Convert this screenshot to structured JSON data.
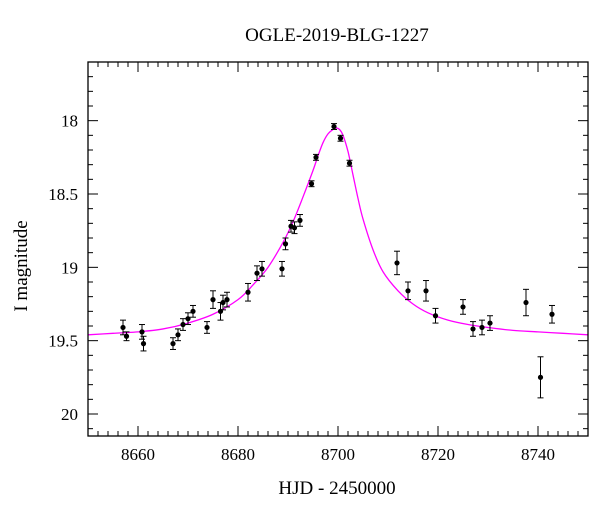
{
  "chart_data": {
    "type": "scatter",
    "title": "OGLE-2019-BLG-1227",
    "xlabel": "HJD - 2450000",
    "ylabel": "I magnitude",
    "xlim": [
      8650,
      8750
    ],
    "ylim": [
      17.6,
      20.15
    ],
    "y_inverted": true,
    "x_ticks": [
      8660,
      8680,
      8700,
      8720,
      8740
    ],
    "y_ticks": [
      18,
      18.5,
      19,
      19.5,
      20
    ],
    "y_tick_labels": [
      "18",
      "18.5",
      "19",
      "19.5",
      "20"
    ],
    "x_minor_step": 2,
    "y_minor_step": 0.1,
    "grid": false,
    "legend": "none",
    "colors": {
      "points": "#000000",
      "model": "#ff00ff",
      "axes": "#000000"
    },
    "series": [
      {
        "kind": "data",
        "x": [
          8657.0,
          8657.7,
          8660.8,
          8661.1,
          8667.0,
          8668.0,
          8669.0,
          8670.0,
          8671.0,
          8673.8,
          8675.0,
          8676.5,
          8677.0,
          8677.8,
          8682.0,
          8683.8,
          8684.8,
          8688.8,
          8689.5,
          8690.6,
          8691.3,
          8692.4,
          8694.7,
          8695.6,
          8699.2,
          8700.5,
          8702.3,
          8711.8,
          8714.0,
          8717.6,
          8719.5,
          8725.0,
          8727.0,
          8728.8,
          8730.4,
          8737.6,
          8740.5,
          8742.8
        ],
        "y": [
          19.41,
          19.47,
          19.44,
          19.52,
          19.52,
          19.46,
          19.39,
          19.35,
          19.3,
          19.41,
          19.22,
          19.3,
          19.24,
          19.22,
          19.17,
          19.04,
          19.01,
          19.01,
          18.84,
          18.72,
          18.73,
          18.68,
          18.43,
          18.25,
          18.04,
          18.12,
          18.29,
          18.97,
          19.16,
          19.16,
          19.33,
          19.27,
          19.42,
          19.41,
          19.38,
          19.24,
          19.75,
          19.32
        ],
        "yerr": [
          0.05,
          0.03,
          0.05,
          0.05,
          0.04,
          0.04,
          0.04,
          0.04,
          0.04,
          0.04,
          0.06,
          0.06,
          0.05,
          0.05,
          0.06,
          0.05,
          0.05,
          0.05,
          0.04,
          0.04,
          0.04,
          0.04,
          0.02,
          0.02,
          0.02,
          0.02,
          0.02,
          0.08,
          0.06,
          0.07,
          0.05,
          0.05,
          0.05,
          0.05,
          0.05,
          0.09,
          0.14,
          0.06
        ]
      },
      {
        "kind": "model",
        "x": [
          8650,
          8655,
          8660,
          8665,
          8670,
          8675,
          8680,
          8683,
          8686,
          8689,
          8691,
          8693,
          8695,
          8696,
          8697,
          8698,
          8699,
          8699.6,
          8700.3,
          8701,
          8702,
          8703,
          8704,
          8705,
          8707,
          8709,
          8712,
          8715,
          8718,
          8722,
          8726,
          8730,
          8735,
          8740,
          8745,
          8750
        ],
        "y": [
          19.46,
          19.45,
          19.44,
          19.42,
          19.38,
          19.32,
          19.22,
          19.12,
          19.0,
          18.83,
          18.69,
          18.52,
          18.34,
          18.24,
          18.15,
          18.09,
          18.06,
          18.05,
          18.06,
          18.1,
          18.21,
          18.37,
          18.53,
          18.67,
          18.88,
          19.03,
          19.16,
          19.25,
          19.31,
          19.36,
          19.39,
          19.41,
          19.43,
          19.44,
          19.45,
          19.46
        ]
      }
    ]
  }
}
